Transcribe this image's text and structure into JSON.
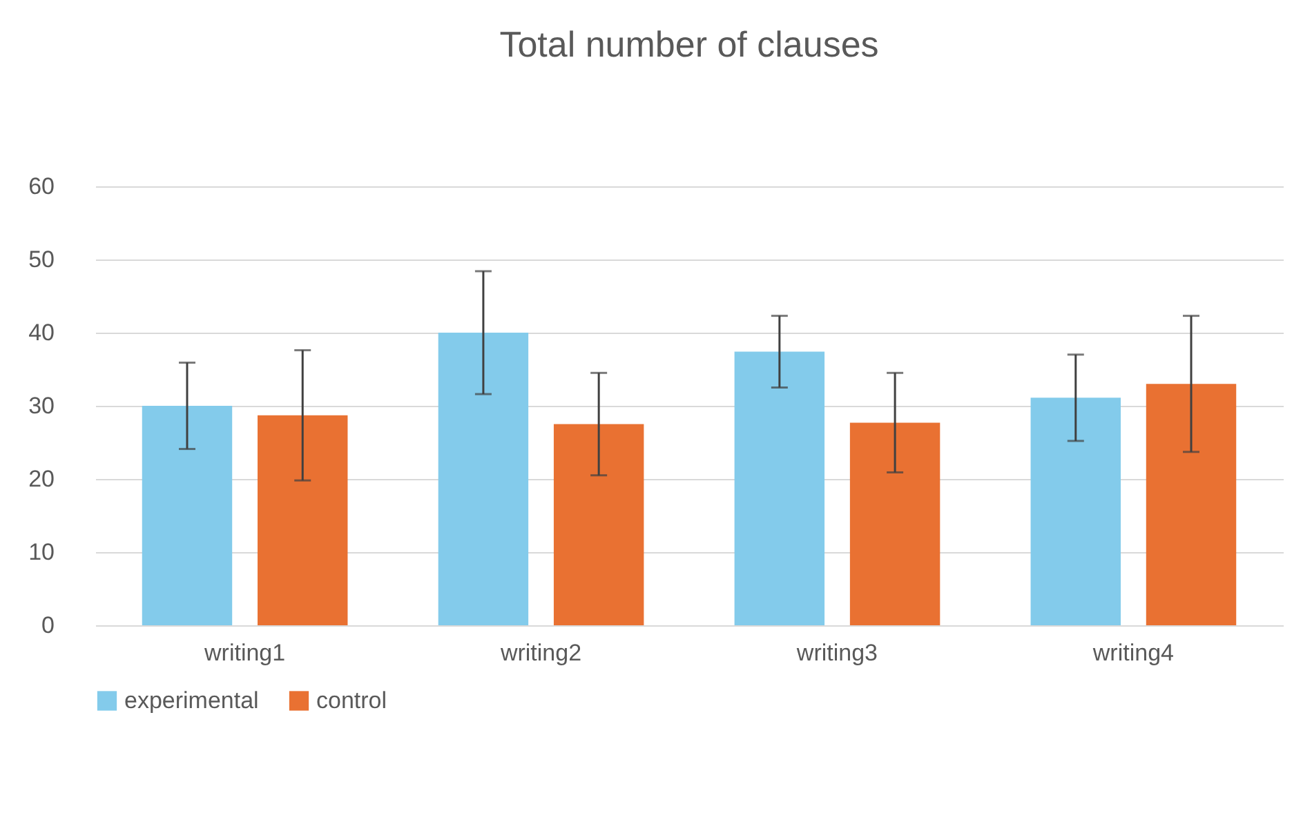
{
  "chart_data": {
    "type": "bar",
    "title": "Total number of  clauses",
    "categories": [
      "writing1",
      "writing2",
      "writing3",
      "writing4"
    ],
    "series": [
      {
        "name": "experimental",
        "color": "#83cbeb",
        "values": [
          30.0,
          40.0,
          37.4,
          31.1
        ],
        "errors": [
          5.9,
          8.4,
          4.9,
          5.9
        ]
      },
      {
        "name": "control",
        "color": "#e97132",
        "values": [
          28.7,
          27.5,
          27.7,
          33.0
        ],
        "errors": [
          8.9,
          7.0,
          6.8,
          9.3
        ]
      }
    ],
    "ylim": [
      0,
      60
    ],
    "yticks": [
      0,
      10,
      20,
      30,
      40,
      50,
      60
    ],
    "grid": "y",
    "legend": "bottom"
  }
}
